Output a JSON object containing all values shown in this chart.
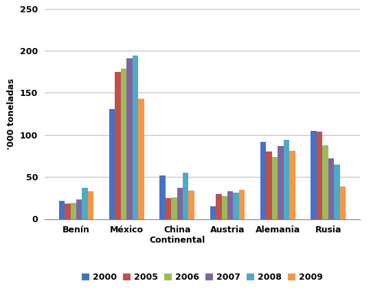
{
  "categories": [
    "Benín",
    "México",
    "China\nContinental",
    "Austria",
    "Alemania",
    "Rusia"
  ],
  "ylabel": "'000 toneladas",
  "ylim": [
    0,
    250
  ],
  "yticks": [
    0,
    50,
    100,
    150,
    200,
    250
  ],
  "years": [
    "2000",
    "2005",
    "2006",
    "2007",
    "2008",
    "2009"
  ],
  "colors": [
    "#4472C4",
    "#C0504D",
    "#9BBB59",
    "#8064A2",
    "#4BACC6",
    "#F79646"
  ],
  "values": {
    "2000": [
      22,
      131,
      52,
      15,
      92,
      105
    ],
    "2005": [
      18,
      175,
      25,
      30,
      80,
      104
    ],
    "2006": [
      19,
      179,
      26,
      27,
      74,
      88
    ],
    "2007": [
      23,
      191,
      37,
      33,
      87,
      72
    ],
    "2008": [
      37,
      194,
      55,
      31,
      94,
      65
    ],
    "2009": [
      33,
      143,
      34,
      35,
      81,
      39
    ]
  },
  "background_color": "#FFFFFF",
  "grid_color": "#C0C0C0"
}
